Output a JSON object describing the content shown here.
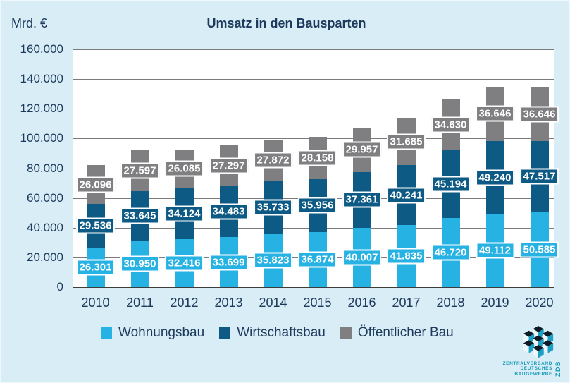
{
  "page": {
    "background": "#d9edf6",
    "plot_background": "#ffffff"
  },
  "header": {
    "unit_label": "Mrd. €",
    "title": "Umsatz in den Bausparten"
  },
  "chart_data": {
    "type": "bar",
    "stacked": true,
    "title": "Umsatz in den Bausparten",
    "ylabel": "Mrd. €",
    "ylim": [
      0,
      160000
    ],
    "ytick_step": 20000,
    "grid": "horizontal",
    "gridline_color": "#7b7b7b",
    "legend_position": "bottom",
    "categories": [
      "2010",
      "2011",
      "2012",
      "2013",
      "2014",
      "2015",
      "2016",
      "2017",
      "2018",
      "2019",
      "2020"
    ],
    "series": [
      {
        "name": "Wohnungsbau",
        "color": "#26b2e2",
        "values": [
          26301,
          30950,
          32416,
          33699,
          35823,
          36874,
          40007,
          41835,
          46720,
          49112,
          50585
        ]
      },
      {
        "name": "Wirtschaftsbau",
        "color": "#0d5a85",
        "values": [
          29536,
          33645,
          34124,
          34483,
          35733,
          35956,
          37361,
          40241,
          45194,
          49240,
          47517
        ]
      },
      {
        "name": "Öffentlicher Bau",
        "color": "#7f7f81",
        "values": [
          26096,
          27597,
          26085,
          27297,
          27872,
          28158,
          29957,
          31685,
          34630,
          36646,
          36646
        ]
      }
    ]
  },
  "legend": {
    "items": [
      {
        "label": "Wohnungsbau",
        "color": "#26b2e2"
      },
      {
        "label": "Wirtschaftsbau",
        "color": "#0d5a85"
      },
      {
        "label": "Öffentlicher Bau",
        "color": "#7f7f81"
      }
    ]
  },
  "logo": {
    "org_lines": [
      "ZENTRALVERBAND",
      "DEUTSCHES",
      "BAUGEWERBE"
    ],
    "abbr": "ZDB",
    "teal": "#1b9fc2",
    "navy": "#0e1b26",
    "face_light": "#edf6fa"
  }
}
